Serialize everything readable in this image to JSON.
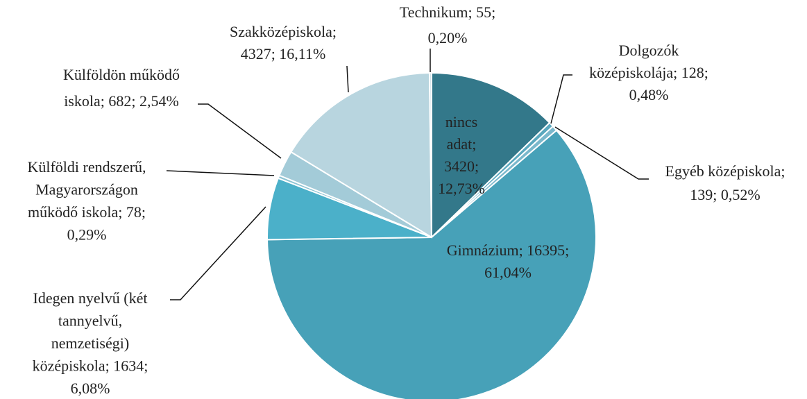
{
  "chart_data": {
    "type": "pie",
    "values": [
      3420,
      128,
      139,
      16395,
      1634,
      78,
      682,
      4327,
      55
    ],
    "labels": [
      [
        "nincs",
        "adat;",
        "3420;",
        "12,73%"
      ],
      [
        "Dolgozók",
        "középiskolája; 128;",
        "0,48%"
      ],
      [
        "Egyéb középiskola;",
        "139; 0,52%"
      ],
      [
        "Gimnázium; 16395;",
        "61,04%"
      ],
      [
        "Idegen nyelvű (két",
        "tannyelvű,",
        "nemzetiségi)",
        "középiskola; 1634;",
        "6,08%"
      ],
      [
        "Külföldi rendszerű,",
        "Magyarországon",
        "működő iskola; 78;",
        "0,29%"
      ],
      [
        "Külföldön működő",
        "iskola; 682; 2,54%"
      ],
      [
        "Szakközépiskola;",
        "4327; 16,11%"
      ],
      [
        "Technikum; 55;",
        "0,20%"
      ]
    ],
    "colors": [
      "#33788a",
      "#5aa8be",
      "#7ab8cc",
      "#47a1b8",
      "#4bb0c9",
      "#8cc3d3",
      "#a3cbd8",
      "#b8d5df",
      "#d0e3ea"
    ]
  }
}
